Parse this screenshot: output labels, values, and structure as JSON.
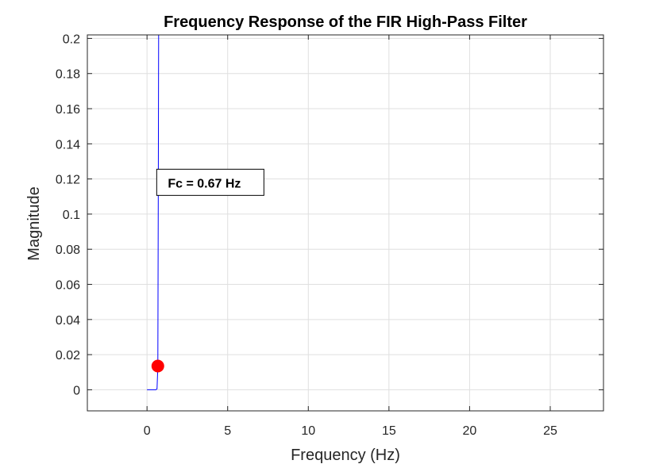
{
  "chart_data": {
    "type": "line",
    "title": "Frequency Response of the FIR High-Pass Filter",
    "xlabel": "Frequency (Hz)",
    "ylabel": "Magnitude",
    "xlim": [
      -3.7,
      28.3
    ],
    "ylim": [
      -0.012,
      0.202
    ],
    "x_ticks": [
      0,
      5,
      10,
      15,
      20,
      25
    ],
    "x_tick_labels": [
      "0",
      "5",
      "10",
      "15",
      "20",
      "25"
    ],
    "y_ticks": [
      0,
      0.02,
      0.04,
      0.06,
      0.08,
      0.1,
      0.12,
      0.14,
      0.16,
      0.18,
      0.2
    ],
    "y_tick_labels": [
      "0",
      "0.02",
      "0.04",
      "0.06",
      "0.08",
      "0.1",
      "0.12",
      "0.14",
      "0.16",
      "0.18",
      "0.2"
    ],
    "grid": true,
    "series": [
      {
        "color": "#0000ff",
        "x": [
          0,
          0.55,
          0.62,
          0.67,
          0.7,
          0.72
        ],
        "y": [
          0,
          0,
          0.0005,
          0.013,
          0.12,
          0.202
        ]
      }
    ],
    "marker": {
      "x": 0.67,
      "y": 0.0135,
      "color": "#ff0000"
    },
    "annotation": {
      "text": "Fc = 0.67 Hz",
      "x": 0.6,
      "y": 0.112
    }
  }
}
